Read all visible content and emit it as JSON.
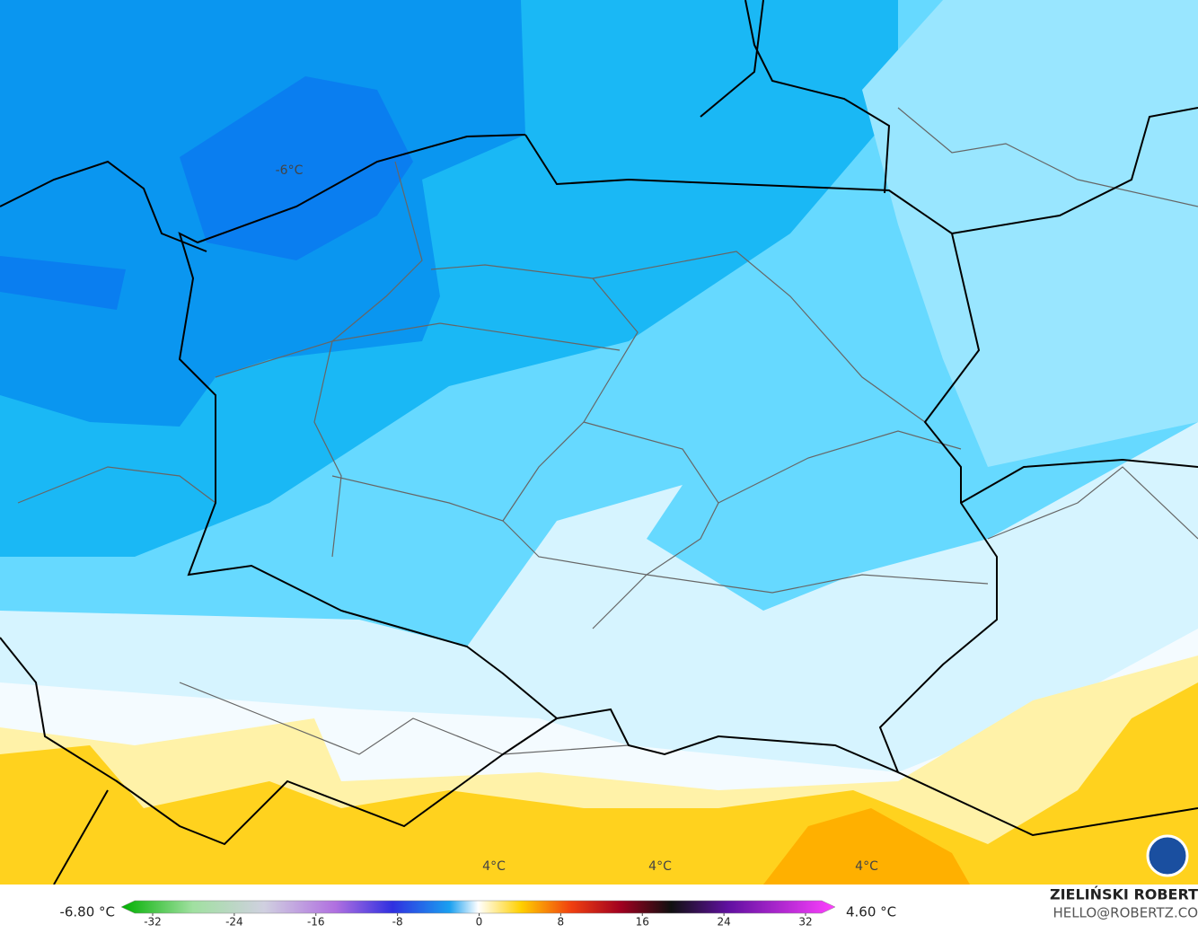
{
  "map": {
    "labels": [
      "-6°C",
      "4°C",
      "4°C",
      "4°C"
    ],
    "legend": {
      "min_label": "-6.80 °C",
      "max_label": "4.60 °C",
      "ticks": [
        -32,
        -24,
        -16,
        -8,
        0,
        8,
        16,
        24,
        32
      ]
    }
  },
  "credit": {
    "name": "ZIELIŃSKI ROBERT",
    "email": "HELLO@ROBERTZ.CO"
  }
}
